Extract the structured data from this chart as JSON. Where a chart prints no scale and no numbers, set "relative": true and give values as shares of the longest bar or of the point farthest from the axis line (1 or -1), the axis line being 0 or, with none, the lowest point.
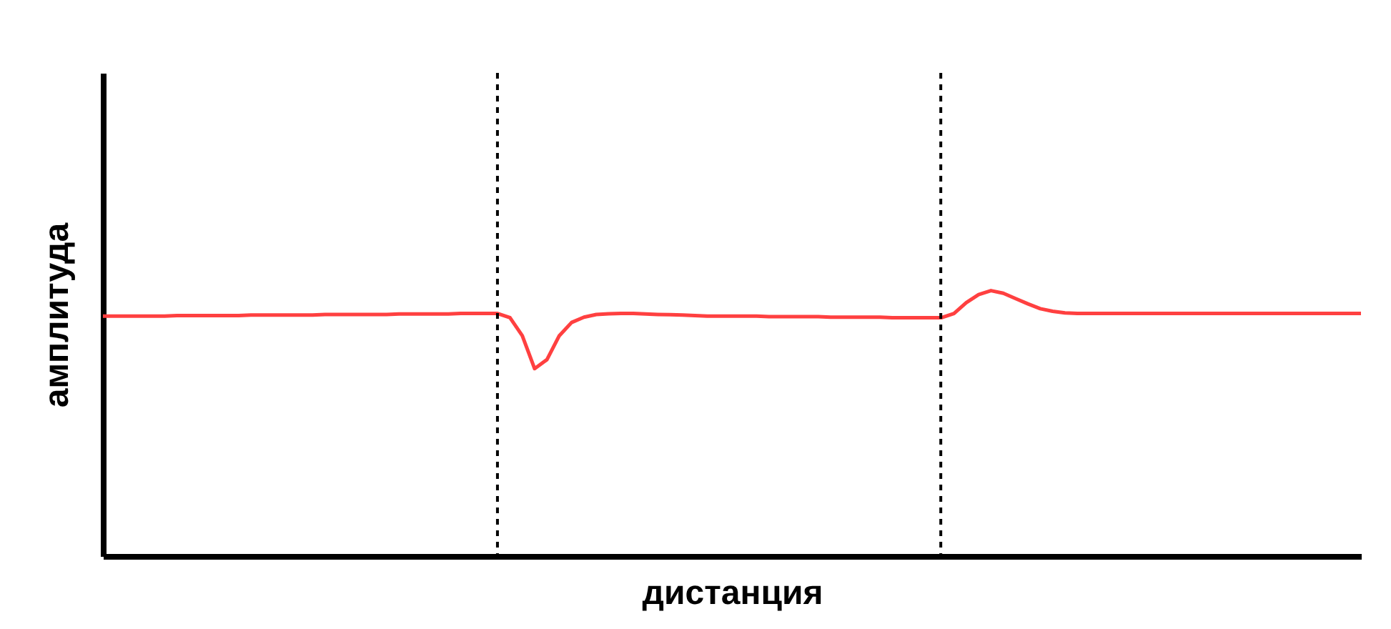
{
  "chart_data": {
    "type": "line",
    "relative": true,
    "xlabel": "дистанция",
    "ylabel": "амплитуда",
    "tick_labels": false,
    "marker": "none",
    "line_style": "solid",
    "categories": [
      null,
      null,
      null,
      null,
      null,
      null,
      null,
      null,
      null,
      null,
      null,
      null,
      null,
      null,
      null,
      null,
      null,
      null,
      null,
      null,
      null,
      null,
      null,
      null,
      null,
      null,
      null,
      null,
      null,
      null,
      null,
      null,
      null,
      null,
      null,
      null,
      null,
      null,
      null,
      null,
      null,
      null,
      null,
      null,
      null,
      null,
      null,
      null,
      null,
      null,
      null,
      null,
      null,
      null,
      null,
      null,
      null,
      null,
      null,
      null,
      null,
      null,
      null,
      null,
      null,
      null,
      null,
      null,
      null,
      null,
      null,
      null,
      null,
      null,
      null,
      null,
      null,
      null,
      null,
      null,
      null,
      null,
      null,
      null,
      null,
      null,
      null,
      null,
      null,
      null,
      null,
      null,
      null,
      null,
      null,
      null,
      null,
      null,
      null,
      null,
      null,
      null,
      null
    ],
    "series": [
      {
        "color": "#ff4040",
        "values": [
          0.904,
          0.904,
          0.904,
          0.904,
          0.904,
          0.904,
          0.906,
          0.906,
          0.906,
          0.906,
          0.906,
          0.906,
          0.908,
          0.908,
          0.908,
          0.908,
          0.908,
          0.908,
          0.91,
          0.91,
          0.91,
          0.91,
          0.91,
          0.91,
          0.912,
          0.912,
          0.912,
          0.912,
          0.912,
          0.914,
          0.914,
          0.914,
          0.914,
          0.898,
          0.83,
          0.706,
          0.74,
          0.83,
          0.88,
          0.9,
          0.91,
          0.913,
          0.914,
          0.914,
          0.912,
          0.91,
          0.909,
          0.908,
          0.906,
          0.904,
          0.904,
          0.904,
          0.904,
          0.904,
          0.902,
          0.902,
          0.902,
          0.902,
          0.902,
          0.9,
          0.9,
          0.9,
          0.9,
          0.9,
          0.898,
          0.898,
          0.898,
          0.898,
          0.898,
          0.914,
          0.955,
          0.985,
          1,
          0.99,
          0.97,
          0.95,
          0.932,
          0.922,
          0.916,
          0.914,
          0.914,
          0.914,
          0.914,
          0.914,
          0.914,
          0.914,
          0.914,
          0.914,
          0.914,
          0.914,
          0.914,
          0.914,
          0.914,
          0.914,
          0.914,
          0.914,
          0.914,
          0.914,
          0.914,
          0.914,
          0.914,
          0.914,
          0.914
        ]
      }
    ]
  }
}
